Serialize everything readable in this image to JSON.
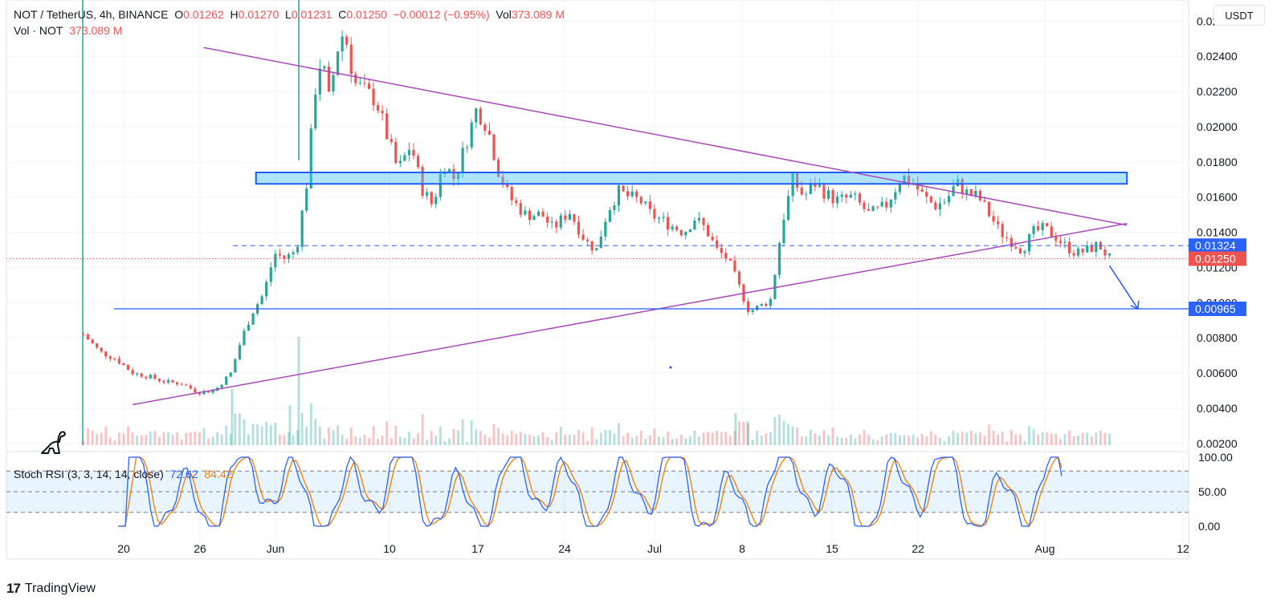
{
  "header": {
    "symbol": "NOT / TetherUS, 4h, BINANCE",
    "o_label": "O",
    "o_value": "0.01262",
    "h_label": "H",
    "h_value": "0.01270",
    "l_label": "L",
    "l_value": "0.01231",
    "c_label": "C",
    "c_value": "0.01250",
    "change": "−0.00012 (−0.95%)",
    "vol_label": "Vol",
    "vol_value": "373.089 M",
    "vol_row_label": "Vol · NOT",
    "vol_row_value": "373.089 M"
  },
  "currency_button": "USDT",
  "stoch": {
    "label": "Stoch RSI (3, 3, 14, 14, close)",
    "k_value": "72.62",
    "d_value": "84.42",
    "levels": [
      "100.00",
      "50.00",
      "0.00"
    ],
    "k_color": "#2962ff",
    "d_color": "#f57c00"
  },
  "price_axis": {
    "ticks": [
      "0.02600",
      "0.02400",
      "0.02200",
      "0.02000",
      "0.01800",
      "0.01600",
      "0.01400",
      "0.01200",
      "0.01000",
      "0.00800",
      "0.00600",
      "0.00400",
      "0.00200"
    ]
  },
  "badges": {
    "resistance_price": "0.01324",
    "last_price": "0.01250",
    "target_price": "0.00965"
  },
  "time_axis": {
    "ticks": [
      "20",
      "26",
      "Jun",
      "10",
      "17",
      "24",
      "Jul",
      "8",
      "15",
      "22",
      "Aug",
      "12"
    ]
  },
  "branding": {
    "name": "TradingView"
  },
  "chart_data": {
    "type": "candlestick",
    "pair": "NOT / TetherUS",
    "interval": "4h",
    "exchange": "BINANCE",
    "x_ticks": [
      "20",
      "26",
      "Jun",
      "10",
      "17",
      "24",
      "Jul",
      "8",
      "15",
      "22",
      "Aug",
      "12"
    ],
    "y_ticks": [
      0.026,
      0.024,
      0.022,
      0.02,
      0.018,
      0.016,
      0.014,
      0.012,
      0.01,
      0.008,
      0.006,
      0.004,
      0.002
    ],
    "ylim": [
      0.0019,
      0.0272
    ],
    "close_path": [
      [
        0,
        0.0082
      ],
      [
        1.5,
        0.0072
      ],
      [
        3,
        0.0068
      ],
      [
        4.5,
        0.006
      ],
      [
        6,
        0.0058
      ],
      [
        7.5,
        0.0055
      ],
      [
        9,
        0.0054
      ],
      [
        10.5,
        0.0049
      ],
      [
        12,
        0.005
      ],
      [
        13.5,
        0.006
      ],
      [
        14.5,
        0.008
      ],
      [
        15.5,
        0.0095
      ],
      [
        16.5,
        0.0105
      ],
      [
        17.5,
        0.0128
      ],
      [
        18.5,
        0.0125
      ],
      [
        19.5,
        0.013
      ],
      [
        20.5,
        0.017
      ],
      [
        21.2,
        0.022
      ],
      [
        21.8,
        0.024
      ],
      [
        22.5,
        0.0215
      ],
      [
        23.3,
        0.0245
      ],
      [
        23.9,
        0.0255
      ],
      [
        24.8,
        0.0225
      ],
      [
        25.8,
        0.022
      ],
      [
        26.8,
        0.0215
      ],
      [
        27.8,
        0.0195
      ],
      [
        28.8,
        0.0175
      ],
      [
        30,
        0.019
      ],
      [
        31,
        0.0165
      ],
      [
        32,
        0.0155
      ],
      [
        33,
        0.018
      ],
      [
        34,
        0.017
      ],
      [
        35,
        0.019
      ],
      [
        36,
        0.021
      ],
      [
        37,
        0.02
      ],
      [
        38,
        0.0175
      ],
      [
        39,
        0.016
      ],
      [
        40.5,
        0.015
      ],
      [
        42,
        0.015
      ],
      [
        43,
        0.0142
      ],
      [
        44.5,
        0.0152
      ],
      [
        46,
        0.0135
      ],
      [
        47,
        0.013
      ],
      [
        48,
        0.0152
      ],
      [
        49,
        0.0163
      ],
      [
        50,
        0.016
      ],
      [
        51,
        0.0158
      ],
      [
        52,
        0.015
      ],
      [
        53.5,
        0.0145
      ],
      [
        55,
        0.014
      ],
      [
        56,
        0.0148
      ],
      [
        57,
        0.0142
      ],
      [
        58,
        0.013
      ],
      [
        59,
        0.0125
      ],
      [
        60,
        0.011
      ],
      [
        61,
        0.0095
      ],
      [
        62,
        0.0098
      ],
      [
        63,
        0.0102
      ],
      [
        64,
        0.0145
      ],
      [
        65,
        0.017
      ],
      [
        66,
        0.016
      ],
      [
        67,
        0.0168
      ],
      [
        68,
        0.0162
      ],
      [
        69,
        0.0158
      ],
      [
        70.5,
        0.016
      ],
      [
        72,
        0.015
      ],
      [
        73.5,
        0.0155
      ],
      [
        75,
        0.0172
      ],
      [
        76,
        0.0168
      ],
      [
        77,
        0.016
      ],
      [
        78,
        0.0155
      ],
      [
        79,
        0.0158
      ],
      [
        80,
        0.0168
      ],
      [
        81,
        0.0162
      ],
      [
        82,
        0.016
      ],
      [
        83,
        0.015
      ],
      [
        84,
        0.014
      ],
      [
        85,
        0.0135
      ],
      [
        86,
        0.013
      ],
      [
        87,
        0.014
      ],
      [
        88,
        0.0142
      ],
      [
        89,
        0.0138
      ],
      [
        90,
        0.0132
      ],
      [
        91,
        0.0128
      ],
      [
        92,
        0.013
      ],
      [
        93,
        0.0133
      ],
      [
        94,
        0.0125
      ]
    ],
    "volume": {
      "label": "Vol · NOT",
      "last_value_millions": 373.089
    },
    "stoch_rsi": {
      "params": "3, 3, 14, 14, close",
      "k_last": 72.62,
      "d_last": 84.42,
      "levels": [
        100,
        80,
        50,
        20,
        0
      ]
    },
    "annotations": [
      {
        "type": "descending trendline",
        "from": {
          "x": 11,
          "y": 0.0245
        },
        "to": {
          "x": 95.6,
          "y": 0.0144
        }
      },
      {
        "type": "ascending trendline",
        "from": {
          "x": 4.5,
          "y": 0.0042
        },
        "to": {
          "x": 95.6,
          "y": 0.0145
        }
      },
      {
        "type": "zone",
        "y_low": 0.01675,
        "y_high": 0.0174,
        "x_start": 15.8,
        "x_end": 95.6
      },
      {
        "type": "dashed level",
        "y": 0.01324
      },
      {
        "type": "last price line",
        "y": 0.0125
      },
      {
        "type": "horizontal support",
        "y": 0.00965
      },
      {
        "type": "arrow",
        "from": {
          "x": 94,
          "y": 0.0121
        },
        "to": {
          "x": 96.6,
          "y": 0.00965
        }
      }
    ]
  }
}
